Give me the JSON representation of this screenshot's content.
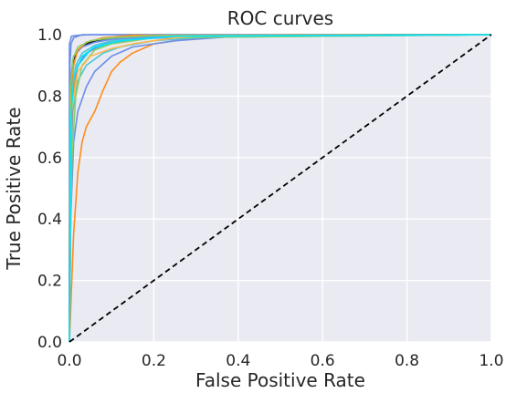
{
  "chart_data": {
    "type": "line",
    "title": "ROC curves",
    "xlabel": "False Positive Rate",
    "ylabel": "True Positive Rate",
    "xlim": [
      0.0,
      1.0
    ],
    "ylim": [
      0.0,
      1.0
    ],
    "x_ticks": [
      "0.0",
      "0.2",
      "0.4",
      "0.6",
      "0.8",
      "1.0"
    ],
    "y_ticks": [
      "0.0",
      "0.2",
      "0.4",
      "0.6",
      "0.8",
      "1.0"
    ],
    "grid": true,
    "legend": "none",
    "series": [
      {
        "color": "#6a8ee8",
        "x": [
          0.0,
          0.0,
          0.005,
          0.02,
          0.05,
          0.2,
          1.0
        ],
        "y": [
          0.0,
          0.97,
          0.995,
          0.998,
          1.0,
          1.0,
          1.0
        ]
      },
      {
        "color": "#ff8c1a",
        "x": [
          0.0,
          0.01,
          0.02,
          0.03,
          0.04,
          0.06,
          0.08,
          0.1,
          0.12,
          0.15,
          0.2,
          0.3,
          0.5,
          1.0
        ],
        "y": [
          0.0,
          0.35,
          0.55,
          0.65,
          0.7,
          0.75,
          0.82,
          0.88,
          0.91,
          0.94,
          0.97,
          0.99,
          1.0,
          1.0
        ]
      },
      {
        "color": "#6a8ee8",
        "x": [
          0.0,
          0.003,
          0.01,
          0.02,
          0.04,
          0.06,
          0.1,
          0.15,
          0.25,
          0.4,
          1.0
        ],
        "y": [
          0.0,
          0.4,
          0.65,
          0.75,
          0.83,
          0.88,
          0.93,
          0.96,
          0.98,
          0.995,
          1.0
        ]
      },
      {
        "color": "#4ec8d8",
        "x": [
          0.0,
          0.002,
          0.008,
          0.02,
          0.04,
          0.08,
          0.12,
          0.2,
          0.35,
          1.0
        ],
        "y": [
          0.0,
          0.5,
          0.75,
          0.85,
          0.9,
          0.94,
          0.96,
          0.98,
          0.995,
          1.0
        ]
      },
      {
        "color": "#ff8c1a",
        "x": [
          0.0,
          0.002,
          0.01,
          0.02,
          0.04,
          0.07,
          0.1,
          0.15,
          0.25,
          1.0
        ],
        "y": [
          0.0,
          0.6,
          0.82,
          0.9,
          0.94,
          0.96,
          0.975,
          0.985,
          0.995,
          1.0
        ]
      },
      {
        "color": "#000000",
        "x": [
          0.0,
          0.001,
          0.005,
          0.01,
          0.02,
          0.04,
          0.06,
          0.1,
          0.2,
          1.0
        ],
        "y": [
          0.0,
          0.75,
          0.88,
          0.92,
          0.95,
          0.97,
          0.98,
          0.99,
          0.998,
          1.0
        ]
      },
      {
        "color": "#00e5ff",
        "x": [
          0.0,
          0.001,
          0.005,
          0.01,
          0.02,
          0.05,
          0.1,
          0.2,
          1.0
        ],
        "y": [
          0.0,
          0.55,
          0.78,
          0.85,
          0.9,
          0.95,
          0.975,
          0.99,
          1.0
        ]
      },
      {
        "color": "#88d068",
        "x": [
          0.0,
          0.002,
          0.006,
          0.015,
          0.03,
          0.06,
          0.1,
          0.2,
          1.0
        ],
        "y": [
          0.0,
          0.3,
          0.6,
          0.8,
          0.9,
          0.95,
          0.97,
          0.99,
          1.0
        ]
      },
      {
        "color": "#6a8ee8",
        "x": [
          0.0,
          0.005,
          0.01,
          0.02,
          0.04,
          0.08,
          0.15,
          0.3,
          1.0
        ],
        "y": [
          0.0,
          0.7,
          0.85,
          0.9,
          0.94,
          0.97,
          0.985,
          0.995,
          1.0
        ]
      },
      {
        "color": "#ffb84d",
        "x": [
          0.0,
          0.005,
          0.02,
          0.05,
          0.1,
          0.15,
          0.2,
          0.25,
          0.3,
          1.0
        ],
        "y": [
          0.0,
          0.75,
          0.88,
          0.93,
          0.955,
          0.97,
          0.98,
          0.99,
          0.995,
          1.0
        ]
      },
      {
        "color": "#4ec8d8",
        "x": [
          0.0,
          0.005,
          0.015,
          0.03,
          0.06,
          0.1,
          0.15,
          0.25,
          1.0
        ],
        "y": [
          0.0,
          0.8,
          0.9,
          0.94,
          0.965,
          0.98,
          0.99,
          0.997,
          1.0
        ]
      },
      {
        "color": "#6a8ee8",
        "x": [
          0.0,
          0.002,
          0.01,
          0.03,
          0.06,
          0.1,
          0.2,
          1.0
        ],
        "y": [
          0.0,
          0.85,
          0.93,
          0.96,
          0.975,
          0.985,
          0.995,
          1.0
        ]
      },
      {
        "color": "#6a8ee8",
        "x": [
          0.0,
          0.001,
          0.004,
          0.01,
          0.03,
          1.0
        ],
        "y": [
          0.0,
          0.9,
          0.97,
          0.99,
          1.0,
          1.0
        ]
      },
      {
        "color": "#ff8c1a",
        "x": [
          0.0,
          0.003,
          0.01,
          0.02,
          0.04,
          0.08,
          0.15,
          1.0
        ],
        "y": [
          0.0,
          0.78,
          0.9,
          0.95,
          0.975,
          0.99,
          0.998,
          1.0
        ]
      },
      {
        "color": "#88d068",
        "x": [
          0.0,
          0.002,
          0.008,
          0.02,
          0.05,
          0.1,
          0.2,
          1.0
        ],
        "y": [
          0.0,
          0.82,
          0.92,
          0.96,
          0.98,
          0.99,
          0.997,
          1.0
        ]
      },
      {
        "color": "#00e5ff",
        "x": [
          0.0,
          0.003,
          0.01,
          0.03,
          0.06,
          0.12,
          0.25,
          1.0
        ],
        "y": [
          0.0,
          0.72,
          0.86,
          0.93,
          0.96,
          0.98,
          0.995,
          1.0
        ]
      },
      {
        "color": "#000000",
        "x": [
          0.0,
          1.0
        ],
        "y": [
          0.0,
          1.0
        ],
        "dashed": true
      }
    ]
  }
}
